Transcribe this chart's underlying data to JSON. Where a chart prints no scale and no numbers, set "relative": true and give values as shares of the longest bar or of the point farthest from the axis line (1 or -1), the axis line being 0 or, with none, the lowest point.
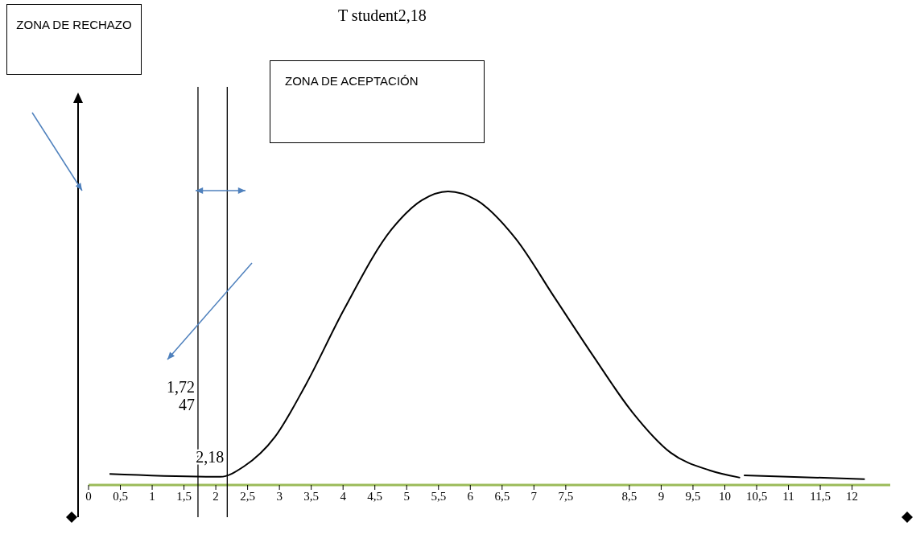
{
  "chart_data": {
    "type": "line",
    "title": "T student2,18",
    "relative": true,
    "marker": "none",
    "color": "#000000",
    "x": [
      0.33,
      2.07,
      2.44,
      2.93,
      3.41,
      4.02,
      4.76,
      5.24,
      5.65,
      6.1,
      6.71,
      7.32,
      7.93,
      8.54,
      9.15,
      9.76,
      10.24,
      10.27,
      10.3,
      12.2
    ],
    "values": [
      0.038,
      0.028,
      0.063,
      0.164,
      0.34,
      0.6,
      0.87,
      0.97,
      1,
      0.97,
      0.84,
      0.64,
      0.44,
      0.25,
      0.11,
      0.05,
      0.025,
      null,
      0.033,
      0.02
    ],
    "xlim": [
      0,
      12.6
    ],
    "xticks": [
      0,
      {
        "value": 0.5,
        "label": "0,5"
      },
      1,
      {
        "value": 1.5,
        "label": "1,5"
      },
      2,
      {
        "value": 2.5,
        "label": "2,5"
      },
      3,
      {
        "value": 3.5,
        "label": "3,5"
      },
      4,
      {
        "value": 4.5,
        "label": "4,5"
      },
      5,
      {
        "value": 5.5,
        "label": "5,5"
      },
      6,
      {
        "value": 6.5,
        "label": "6,5"
      },
      7,
      {
        "value": 7.5,
        "label": "7,5"
      },
      {
        "value": 8.5,
        "label": "8,5"
      },
      9,
      {
        "value": 9.5,
        "label": "9,5"
      },
      10,
      {
        "value": 10.5,
        "label": "10,5"
      },
      11,
      {
        "value": 11.5,
        "label": "11,5"
      },
      12
    ],
    "ref_lines": [
      {
        "axis": "x",
        "value": 1.72,
        "label": "1,72\n47",
        "color": "#000000"
      },
      {
        "axis": "x",
        "value": 2.18,
        "label": "2,18",
        "color": "#000000"
      }
    ],
    "annotations": [
      "ZONA DE RECHAZO",
      "ZONA DE ACEPTACIÓN"
    ]
  }
}
